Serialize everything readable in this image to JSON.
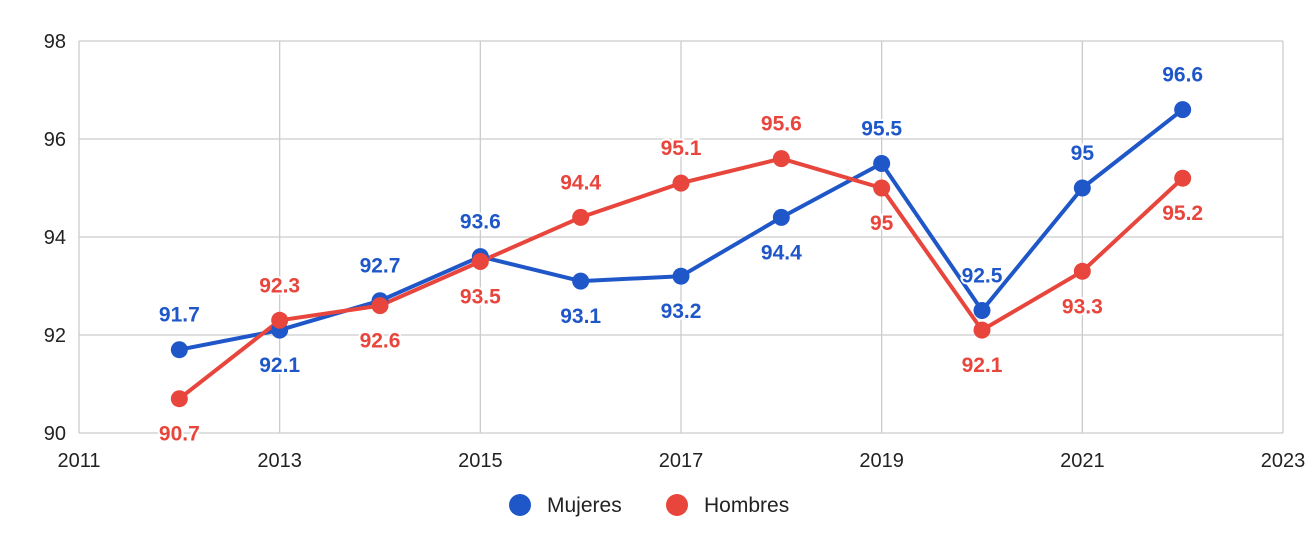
{
  "chart_data": {
    "type": "line",
    "title": "",
    "xlabel": "",
    "ylabel": "",
    "xlim": [
      2011,
      2023
    ],
    "ylim": [
      90,
      98
    ],
    "x_ticks": [
      2011,
      2013,
      2015,
      2017,
      2019,
      2021,
      2023
    ],
    "y_ticks": [
      90,
      92,
      94,
      96,
      98
    ],
    "grid": true,
    "legend_position": "bottom",
    "x": [
      2012,
      2013,
      2014,
      2015,
      2016,
      2017,
      2018,
      2019,
      2020,
      2021,
      2022
    ],
    "series": [
      {
        "name": "Mujeres",
        "color": "#1f57c8",
        "values": [
          91.7,
          92.1,
          92.7,
          93.6,
          93.1,
          93.2,
          94.4,
          95.5,
          92.5,
          95,
          96.6
        ]
      },
      {
        "name": "Hombres",
        "color": "#e8453c",
        "values": [
          90.7,
          92.3,
          92.6,
          93.5,
          94.4,
          95.1,
          95.6,
          95,
          92.1,
          93.3,
          95.2
        ]
      }
    ]
  }
}
